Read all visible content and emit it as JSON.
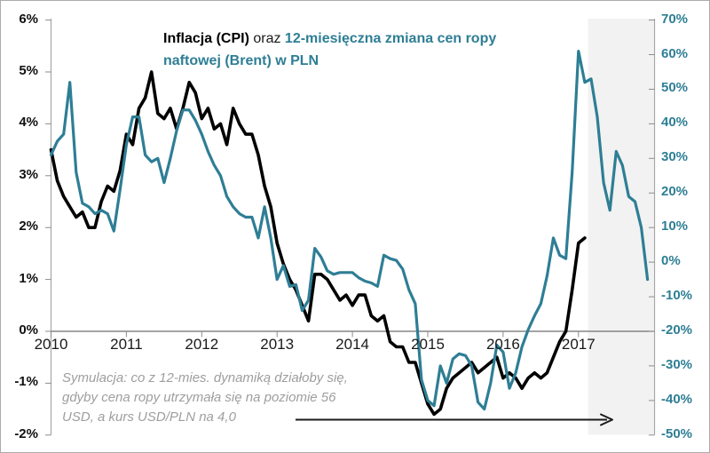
{
  "title": {
    "seg_cpi": "Inflacja (CPI)",
    "seg_oraz": " oraz ",
    "seg_brent": "12-miesięczna zmiana cen ropy",
    "seg_brent_line2": "naftowej (Brent) w PLN"
  },
  "annotation": {
    "line1": "Symulacja: co z 12-mies. dynamiką działoby się,",
    "line2": "gdyby cena ropy utrzymała się na poziomie 56",
    "line3": "USD, a kurs USD/PLN na 4,0"
  },
  "colors": {
    "cpi_line": "#000000",
    "brent_line": "#2E7E95",
    "shade": "#F2F2F2",
    "axis_line": "#A6A6A6",
    "x_axis_line": "#6E6E6E",
    "tick": "#8C8C8C",
    "left_label": "#111111",
    "year_label": "#1A1A1A",
    "right_label": "#2E7E95",
    "annotation_text": "#9E9E9E",
    "arrow": "#1A1A1A"
  },
  "chart_data": {
    "type": "line",
    "title": "Inflacja (CPI) oraz 12-miesięczna zmiana cen ropy naftowej (Brent) w PLN",
    "frequency": "monthly",
    "x_start": "2010-01",
    "x_years": [
      "2010",
      "2011",
      "2012",
      "2013",
      "2014",
      "2015",
      "2016",
      "2017"
    ],
    "grid": false,
    "legend": "in-title",
    "left_axis": {
      "series": "Inflacja (CPI)",
      "unit": "%",
      "min": -2,
      "max": 6,
      "tick_values": [
        6,
        5,
        4,
        3,
        2,
        1,
        0,
        -1,
        -2
      ],
      "tick_labels": [
        "6%",
        "5%",
        "4%",
        "3%",
        "2%",
        "1%",
        "0%",
        "-1%",
        "-2%"
      ]
    },
    "right_axis": {
      "series": "12-miesięczna zmiana cen ropy naftowej (Brent) w PLN",
      "unit": "%",
      "min": -50,
      "max": 70,
      "tick_values": [
        70,
        60,
        50,
        40,
        30,
        20,
        10,
        0,
        -10,
        -20,
        -30,
        -40,
        -50
      ],
      "tick_labels": [
        "70%",
        "60%",
        "50%",
        "40%",
        "30%",
        "20%",
        "10%",
        "0%",
        "-10%",
        "-20%",
        "-30%",
        "-40%",
        "-50%"
      ]
    },
    "series": [
      {
        "name": "Inflacja (CPI)",
        "axis": "left",
        "color": "#000000",
        "start": "2010-01",
        "values": [
          3.5,
          2.9,
          2.6,
          2.4,
          2.2,
          2.3,
          2.0,
          2.0,
          2.5,
          2.8,
          2.7,
          3.1,
          3.8,
          3.6,
          4.3,
          4.5,
          5.0,
          4.2,
          4.1,
          4.3,
          3.9,
          4.3,
          4.8,
          4.6,
          4.1,
          4.3,
          3.9,
          4.0,
          3.6,
          4.3,
          4.0,
          3.8,
          3.8,
          3.4,
          2.8,
          2.4,
          1.7,
          1.3,
          1.0,
          0.8,
          0.5,
          0.2,
          1.1,
          1.1,
          1.0,
          0.8,
          0.6,
          0.7,
          0.5,
          0.7,
          0.7,
          0.3,
          0.2,
          0.3,
          -0.2,
          -0.3,
          -0.3,
          -0.6,
          -0.6,
          -1.0,
          -1.4,
          -1.6,
          -1.5,
          -1.1,
          -0.9,
          -0.8,
          -0.7,
          -0.6,
          -0.8,
          -0.7,
          -0.6,
          -0.5,
          -0.9,
          -0.8,
          -0.9,
          -1.1,
          -0.9,
          -0.8,
          -0.9,
          -0.8,
          -0.5,
          -0.2,
          0.0,
          0.8,
          1.7,
          1.8
        ]
      },
      {
        "name": "12-miesięczna zmiana cen ropy naftowej (Brent) w PLN",
        "axis": "right",
        "color": "#2E7E95",
        "start": "2010-01",
        "values": [
          31,
          35,
          37,
          52,
          26,
          17,
          16,
          14,
          15,
          14,
          9,
          21,
          34,
          42,
          42,
          31,
          29,
          30,
          23,
          30,
          38,
          44,
          44,
          41,
          37,
          32,
          28,
          25,
          19,
          16,
          14,
          13,
          13,
          7,
          16,
          7,
          -5,
          -1,
          -7,
          -6.5,
          -14,
          -11,
          4,
          1.5,
          -2.5,
          -3.5,
          -3,
          -3,
          -3,
          -4.5,
          -5.5,
          -6,
          -7,
          2,
          1,
          0.5,
          -2,
          -8,
          -12,
          -34,
          -40,
          -41.5,
          -30,
          -35,
          -28,
          -26.5,
          -27,
          -30,
          -40.5,
          -42.5,
          -35,
          -24,
          -26,
          -36.5,
          -32,
          -24.5,
          -19.5,
          -15.5,
          -12,
          -4,
          7,
          2,
          1,
          26,
          61,
          52,
          53,
          42,
          23,
          15,
          32,
          28,
          19,
          17.5,
          10,
          -5
        ]
      }
    ],
    "shaded_region": {
      "from": "2017-03",
      "to": "2018-01",
      "color": "#F2F2F2"
    },
    "arrow": {
      "direction": "right",
      "position": "bottom"
    }
  }
}
